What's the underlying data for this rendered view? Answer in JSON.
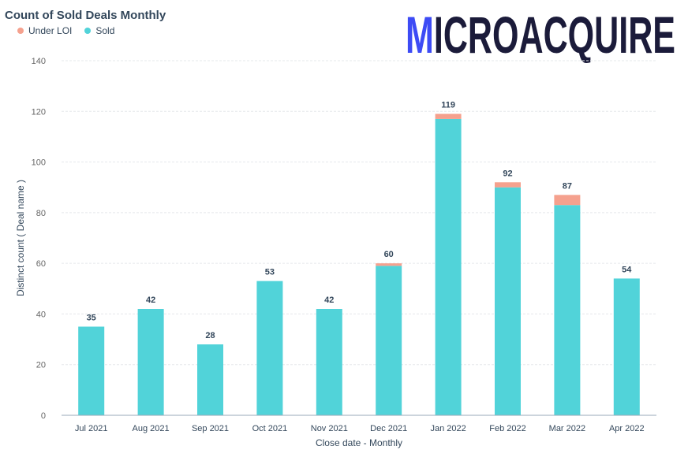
{
  "chart_data": {
    "type": "bar",
    "stacked": true,
    "title": "Count of Sold Deals Monthly",
    "xlabel": "Close date - Monthly",
    "ylabel": "Distinct count ( Deal name )",
    "ylim": [
      0,
      140
    ],
    "yticks": [
      0,
      20,
      40,
      60,
      80,
      100,
      120,
      140
    ],
    "categories": [
      "Jul 2021",
      "Aug 2021",
      "Sep 2021",
      "Oct 2021",
      "Nov 2021",
      "Dec 2021",
      "Jan 2022",
      "Feb 2022",
      "Mar 2022",
      "Apr 2022"
    ],
    "series": [
      {
        "name": "Sold",
        "color": "#51d3d9",
        "values": [
          35,
          42,
          28,
          53,
          42,
          59,
          117,
          90,
          83,
          54
        ]
      },
      {
        "name": "Under LOI",
        "color": "#f5a18e",
        "values": [
          0,
          0,
          0,
          0,
          0,
          1,
          2,
          2,
          4,
          0
        ]
      }
    ],
    "totals": [
      35,
      42,
      28,
      53,
      42,
      60,
      119,
      92,
      87,
      54
    ],
    "legend_placement": "top-left",
    "grid": true
  },
  "legend": [
    {
      "label": "Under LOI",
      "color": "#f5a18e"
    },
    {
      "label": "Sold",
      "color": "#51d3d9"
    }
  ],
  "logo": {
    "text": "MICROACQUIRE",
    "accent_color": "#3d4bf5",
    "text_color": "#1b1b3a"
  }
}
